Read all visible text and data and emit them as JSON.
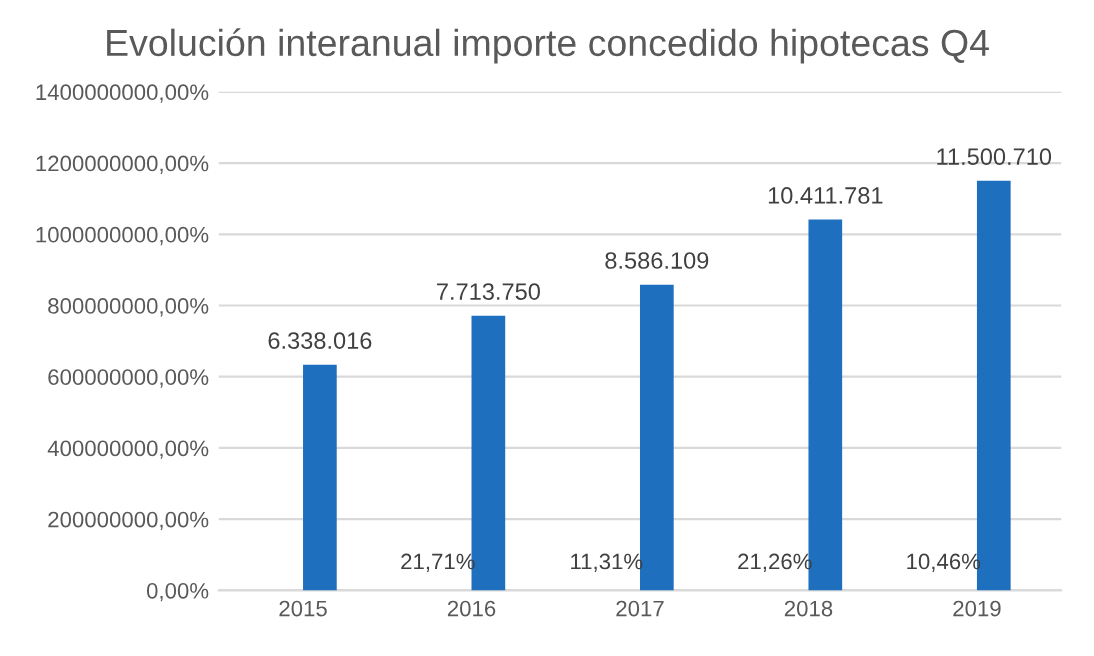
{
  "chart_data": {
    "type": "bar",
    "title": "Evolución interanual importe concedido hipotecas Q4",
    "categories": [
      "2015",
      "2016",
      "2017",
      "2018",
      "2019"
    ],
    "values": [
      6338016,
      7713750,
      8586109,
      10411781,
      11500710
    ],
    "value_labels": [
      "6.338.016",
      "7.713.750",
      "8.586.109",
      "10.411.781",
      "11.500.710"
    ],
    "color": "#1f6fbf",
    "ylim": [
      0,
      14000000
    ],
    "yticks": [
      {
        "value": 0,
        "label": "0,00%"
      },
      {
        "value": 2000000,
        "label": "200000000,00%"
      },
      {
        "value": 4000000,
        "label": "400000000,00%"
      },
      {
        "value": 6000000,
        "label": "600000000,00%"
      },
      {
        "value": 8000000,
        "label": "800000000,00%"
      },
      {
        "value": 10000000,
        "label": "1000000000,00%"
      },
      {
        "value": 12000000,
        "label": "1200000000,00%"
      },
      {
        "value": 14000000,
        "label": "1400000000,00%"
      }
    ],
    "grid": "y",
    "annotations": [
      {
        "text": "21,71%",
        "x": "2016",
        "y": 0
      },
      {
        "text": "11,31%",
        "x": "2017",
        "y": 0
      },
      {
        "text": "21,26%",
        "x": "2018",
        "y": 0
      },
      {
        "text": "10,46%",
        "x": "2019",
        "y": 0
      }
    ]
  }
}
